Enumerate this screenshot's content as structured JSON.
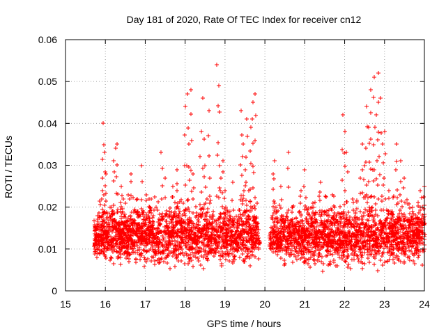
{
  "chart_data": {
    "type": "scatter",
    "title": "Day 181 of 2020, Rate Of TEC Index for receiver cn12",
    "xlabel": "GPS time / hours",
    "ylabel": "ROTI / TECUs",
    "xlim": [
      15,
      24
    ],
    "ylim": [
      0,
      0.06
    ],
    "grid": true,
    "marker": "+",
    "color": "#ff0000",
    "x_ticks": [
      "15",
      "16",
      "17",
      "18",
      "19",
      "20",
      "21",
      "22",
      "23",
      "24"
    ],
    "y_ticks": [
      "0",
      "0.01",
      "0.02",
      "0.03",
      "0.04",
      "0.05",
      "0.06"
    ],
    "series": [
      {
        "name": "ROTI",
        "x": [
          15.75,
          15.8,
          15.85,
          15.9,
          15.95,
          15.98,
          16.02,
          16.05,
          16.1,
          16.15,
          16.2,
          16.25,
          16.3,
          16.35,
          16.4,
          16.45,
          16.5,
          16.55,
          16.6,
          16.65,
          16.7,
          16.8,
          16.9,
          17.0,
          17.1,
          17.2,
          17.3,
          17.4,
          17.5,
          17.6,
          17.7,
          17.8,
          17.9,
          17.95,
          18.0,
          18.05,
          18.1,
          18.15,
          18.2,
          18.3,
          18.4,
          18.45,
          18.5,
          18.55,
          18.6,
          18.7,
          18.8,
          18.85,
          18.9,
          18.95,
          19.0,
          19.05,
          19.1,
          19.2,
          19.3,
          19.4,
          19.45,
          19.5,
          19.55,
          19.6,
          19.65,
          19.7,
          19.75,
          19.8,
          19.85,
          20.15,
          20.2,
          20.25,
          20.3,
          20.35,
          20.4,
          20.5,
          20.6,
          20.7,
          20.8,
          20.9,
          21.0,
          21.1,
          21.2,
          21.3,
          21.4,
          21.5,
          21.6,
          21.7,
          21.8,
          21.9,
          21.95,
          22.0,
          22.05,
          22.1,
          22.2,
          22.3,
          22.4,
          22.45,
          22.5,
          22.55,
          22.6,
          22.65,
          22.7,
          22.75,
          22.8,
          22.85,
          22.9,
          22.95,
          23.0,
          23.1,
          23.2,
          23.3,
          23.4,
          23.5,
          23.6,
          23.7,
          23.8,
          23.9,
          24.0
        ],
        "y": [
          0.012,
          0.018,
          0.009,
          0.022,
          0.04,
          0.033,
          0.028,
          0.014,
          0.011,
          0.02,
          0.031,
          0.034,
          0.035,
          0.016,
          0.025,
          0.012,
          0.021,
          0.009,
          0.015,
          0.028,
          0.011,
          0.016,
          0.03,
          0.013,
          0.022,
          0.018,
          0.014,
          0.033,
          0.027,
          0.012,
          0.025,
          0.029,
          0.017,
          0.021,
          0.044,
          0.047,
          0.035,
          0.048,
          0.028,
          0.015,
          0.038,
          0.046,
          0.03,
          0.022,
          0.043,
          0.019,
          0.054,
          0.049,
          0.027,
          0.031,
          0.024,
          0.013,
          0.018,
          0.026,
          0.012,
          0.043,
          0.035,
          0.029,
          0.041,
          0.024,
          0.039,
          0.045,
          0.047,
          0.021,
          0.012,
          0.014,
          0.028,
          0.031,
          0.019,
          0.011,
          0.025,
          0.017,
          0.033,
          0.02,
          0.012,
          0.024,
          0.029,
          0.016,
          0.021,
          0.014,
          0.026,
          0.019,
          0.012,
          0.023,
          0.018,
          0.011,
          0.042,
          0.038,
          0.033,
          0.016,
          0.022,
          0.013,
          0.027,
          0.035,
          0.03,
          0.044,
          0.039,
          0.048,
          0.029,
          0.051,
          0.042,
          0.052,
          0.046,
          0.035,
          0.038,
          0.024,
          0.019,
          0.035,
          0.031,
          0.027,
          0.013,
          0.02,
          0.016,
          0.024,
          0.025
        ],
        "dense_band": {
          "segments": [
            [
              15.72,
              19.85
            ],
            [
              20.12,
              24.0
            ]
          ],
          "y_range": [
            0.004,
            0.022
          ],
          "typical": 0.011,
          "points_per_hour": 420
        }
      }
    ]
  }
}
